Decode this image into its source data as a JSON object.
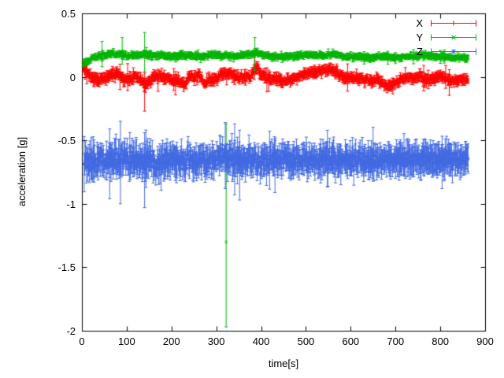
{
  "chart_data": {
    "type": "scatter",
    "subtype": "points-with-yerrorbars",
    "title": "",
    "xlabel": "time[s]",
    "ylabel": "acceleration [g]",
    "xlim": [
      0,
      900
    ],
    "ylim": [
      -2,
      0.5
    ],
    "xticks": [
      0,
      100,
      200,
      300,
      400,
      500,
      600,
      700,
      800,
      900
    ],
    "yticks": [
      0.5,
      0,
      -0.5,
      -1,
      -1.5,
      -2
    ],
    "ytick_labels": [
      "0.5",
      "0",
      "-0.5",
      "-1",
      "-1.5",
      "-2"
    ],
    "grid": false,
    "legend_position": "top-right-inside",
    "background": "#ffffff",
    "axis_color": "#000000",
    "representation": "mean_keypoints_plus_gaussian_noise",
    "series": [
      {
        "name": "X",
        "color": "#ff0000",
        "marker": "plus",
        "seed": 1137,
        "x_start": 3,
        "x_end": 862,
        "dt": 1,
        "noise_sd": [
          0.016,
          0.01
        ],
        "err_base": 0.028,
        "err_spike_prob": 0.02,
        "err_spike_factor": 2.5,
        "mean_keypoints": [
          [
            3,
            0.07
          ],
          [
            10,
            0.04
          ],
          [
            20,
            0.0
          ],
          [
            35,
            -0.03
          ],
          [
            50,
            -0.01
          ],
          [
            65,
            0.02
          ],
          [
            80,
            0.03
          ],
          [
            95,
            -0.02
          ],
          [
            110,
            -0.01
          ],
          [
            125,
            0.0
          ],
          [
            140,
            -0.06
          ],
          [
            155,
            -0.01
          ],
          [
            170,
            0.0
          ],
          [
            185,
            -0.01
          ],
          [
            200,
            -0.02
          ],
          [
            215,
            -0.03
          ],
          [
            230,
            -0.07
          ],
          [
            240,
            0.02
          ],
          [
            252,
            -0.02
          ],
          [
            262,
            0.03
          ],
          [
            272,
            -0.06
          ],
          [
            285,
            -0.02
          ],
          [
            300,
            -0.01
          ],
          [
            315,
            0.02
          ],
          [
            330,
            0.03
          ],
          [
            345,
            0.0
          ],
          [
            360,
            -0.01
          ],
          [
            375,
            0.0
          ],
          [
            390,
            0.07
          ],
          [
            400,
            0.02
          ],
          [
            415,
            -0.01
          ],
          [
            430,
            -0.02
          ],
          [
            450,
            -0.03
          ],
          [
            470,
            -0.02
          ],
          [
            490,
            0.01
          ],
          [
            510,
            0.03
          ],
          [
            530,
            0.04
          ],
          [
            550,
            0.06
          ],
          [
            565,
            0.05
          ],
          [
            580,
            0.0
          ],
          [
            600,
            -0.01
          ],
          [
            620,
            -0.01
          ],
          [
            640,
            -0.03
          ],
          [
            660,
            -0.02
          ],
          [
            680,
            -0.07
          ],
          [
            695,
            -0.06
          ],
          [
            710,
            -0.02
          ],
          [
            725,
            0.0
          ],
          [
            740,
            -0.01
          ],
          [
            755,
            0.01
          ],
          [
            770,
            -0.03
          ],
          [
            785,
            -0.01
          ],
          [
            800,
            0.01
          ],
          [
            815,
            -0.02
          ],
          [
            830,
            -0.03
          ],
          [
            845,
            -0.02
          ],
          [
            862,
            -0.02
          ]
        ],
        "outliers": [
          {
            "x": 85,
            "y": 0.0,
            "ylow": -0.1,
            "yhigh": 0.1
          },
          {
            "x": 140,
            "y": -0.08,
            "ylow": -0.27,
            "yhigh": 0.03
          },
          {
            "x": 763,
            "y": -0.01,
            "ylow": -0.11,
            "yhigh": 0.09
          },
          {
            "x": 812,
            "y": 0.0,
            "ylow": -0.09,
            "yhigh": 0.09
          }
        ]
      },
      {
        "name": "Y",
        "color": "#00b400",
        "marker": "cross",
        "seed": 2291,
        "x_start": 3,
        "x_end": 862,
        "dt": 1,
        "noise_sd": [
          0.009,
          0.006
        ],
        "err_base": 0.018,
        "err_spike_prob": 0.015,
        "err_spike_factor": 2.0,
        "mean_keypoints": [
          [
            3,
            0.1
          ],
          [
            12,
            0.12
          ],
          [
            25,
            0.15
          ],
          [
            40,
            0.17
          ],
          [
            60,
            0.18
          ],
          [
            80,
            0.18
          ],
          [
            100,
            0.17
          ],
          [
            120,
            0.17
          ],
          [
            140,
            0.18
          ],
          [
            160,
            0.17
          ],
          [
            180,
            0.17
          ],
          [
            200,
            0.16
          ],
          [
            220,
            0.17
          ],
          [
            240,
            0.17
          ],
          [
            260,
            0.16
          ],
          [
            280,
            0.17
          ],
          [
            300,
            0.17
          ],
          [
            320,
            0.17
          ],
          [
            340,
            0.16
          ],
          [
            360,
            0.17
          ],
          [
            380,
            0.18
          ],
          [
            392,
            0.19
          ],
          [
            405,
            0.17
          ],
          [
            425,
            0.16
          ],
          [
            445,
            0.16
          ],
          [
            465,
            0.16
          ],
          [
            485,
            0.17
          ],
          [
            505,
            0.17
          ],
          [
            525,
            0.17
          ],
          [
            545,
            0.17
          ],
          [
            565,
            0.18
          ],
          [
            585,
            0.16
          ],
          [
            605,
            0.16
          ],
          [
            625,
            0.16
          ],
          [
            645,
            0.15
          ],
          [
            665,
            0.16
          ],
          [
            685,
            0.16
          ],
          [
            705,
            0.15
          ],
          [
            725,
            0.16
          ],
          [
            745,
            0.16
          ],
          [
            765,
            0.17
          ],
          [
            785,
            0.16
          ],
          [
            805,
            0.16
          ],
          [
            825,
            0.15
          ],
          [
            845,
            0.15
          ],
          [
            862,
            0.15
          ]
        ],
        "outliers": [
          {
            "x": 45,
            "y": 0.18,
            "ylow": 0.08,
            "yhigh": 0.28
          },
          {
            "x": 90,
            "y": 0.2,
            "ylow": 0.1,
            "yhigh": 0.31
          },
          {
            "x": 140,
            "y": 0.19,
            "ylow": 0.04,
            "yhigh": 0.35
          },
          {
            "x": 322,
            "y": -1.3,
            "ylow": -1.97,
            "yhigh": -0.37
          },
          {
            "x": 386,
            "y": 0.19,
            "ylow": 0.05,
            "yhigh": 0.31
          }
        ]
      },
      {
        "name": "Z",
        "color": "#4169e1",
        "marker": "star",
        "seed": 3407,
        "x_start": 5,
        "x_end": 862,
        "dt": 1,
        "noise_sd": [
          0.042,
          0.026
        ],
        "err_base": 0.085,
        "err_spike_prob": 0.03,
        "err_spike_factor": 1.8,
        "mean_keypoints": [
          [
            5,
            -0.66
          ],
          [
            40,
            -0.66
          ],
          [
            80,
            -0.65
          ],
          [
            120,
            -0.66
          ],
          [
            160,
            -0.66
          ],
          [
            200,
            -0.66
          ],
          [
            240,
            -0.65
          ],
          [
            280,
            -0.66
          ],
          [
            320,
            -0.63
          ],
          [
            340,
            -0.66
          ],
          [
            360,
            -0.67
          ],
          [
            400,
            -0.66
          ],
          [
            440,
            -0.65
          ],
          [
            480,
            -0.66
          ],
          [
            520,
            -0.66
          ],
          [
            560,
            -0.65
          ],
          [
            600,
            -0.66
          ],
          [
            640,
            -0.65
          ],
          [
            680,
            -0.65
          ],
          [
            720,
            -0.65
          ],
          [
            760,
            -0.65
          ],
          [
            800,
            -0.65
          ],
          [
            862,
            -0.65
          ]
        ],
        "outliers": [
          {
            "x": 62,
            "y": -0.68,
            "ylow": -0.96,
            "yhigh": -0.41
          },
          {
            "x": 86,
            "y": -0.66,
            "ylow": -1.0,
            "yhigh": -0.35
          },
          {
            "x": 140,
            "y": -0.72,
            "ylow": -1.03,
            "yhigh": -0.44
          },
          {
            "x": 320,
            "y": -0.6,
            "ylow": -0.88,
            "yhigh": -0.36
          },
          {
            "x": 341,
            "y": -0.63,
            "ylow": -0.93,
            "yhigh": -0.37
          },
          {
            "x": 352,
            "y": -0.68,
            "ylow": -0.97,
            "yhigh": -0.42
          }
        ]
      }
    ]
  }
}
